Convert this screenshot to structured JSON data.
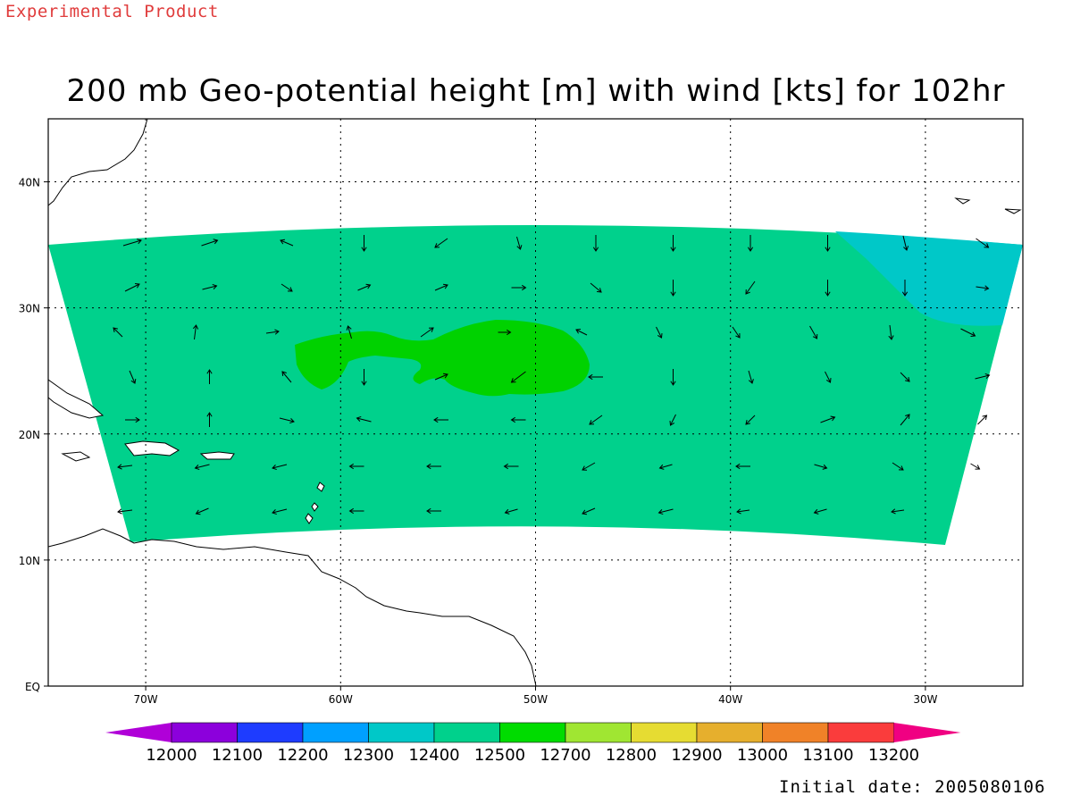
{
  "header_note": "Experimental Product",
  "title": "200 mb Geo-potential height [m] with wind [kts] for 102hr",
  "initial_date": "Initial date: 2005080106",
  "map": {
    "lat_labels": [
      "EQ",
      "10N",
      "20N",
      "30N",
      "40N"
    ],
    "lat_values": [
      0,
      10,
      20,
      30,
      40
    ],
    "lon_labels": [
      "70W",
      "60W",
      "50W",
      "40W",
      "30W"
    ],
    "lon_values": [
      -70,
      -60,
      -50,
      -40,
      -30
    ],
    "extent": {
      "lon_min": -75,
      "lon_max": -25,
      "lat_min": 0,
      "lat_max": 45
    },
    "grid": true,
    "colors": {
      "field_12500": "#00d18c",
      "field_12400": "#00c8c8",
      "field_12700": "#00d200"
    }
  },
  "colorbar": {
    "labels": [
      "12000",
      "12100",
      "12200",
      "12300",
      "12400",
      "12500",
      "12700",
      "12800",
      "12900",
      "13000",
      "13100",
      "13200"
    ],
    "colors": [
      "#8c00dc",
      "#1e3cff",
      "#00a0ff",
      "#00c8c8",
      "#00d18c",
      "#00dc00",
      "#a0e632",
      "#e6dc32",
      "#e6af2d",
      "#f08228",
      "#fa3c3c",
      "#f00082"
    ],
    "low_color": "#b000d8",
    "high_color": "#f00082"
  },
  "wind_arrow_color": "#000000"
}
